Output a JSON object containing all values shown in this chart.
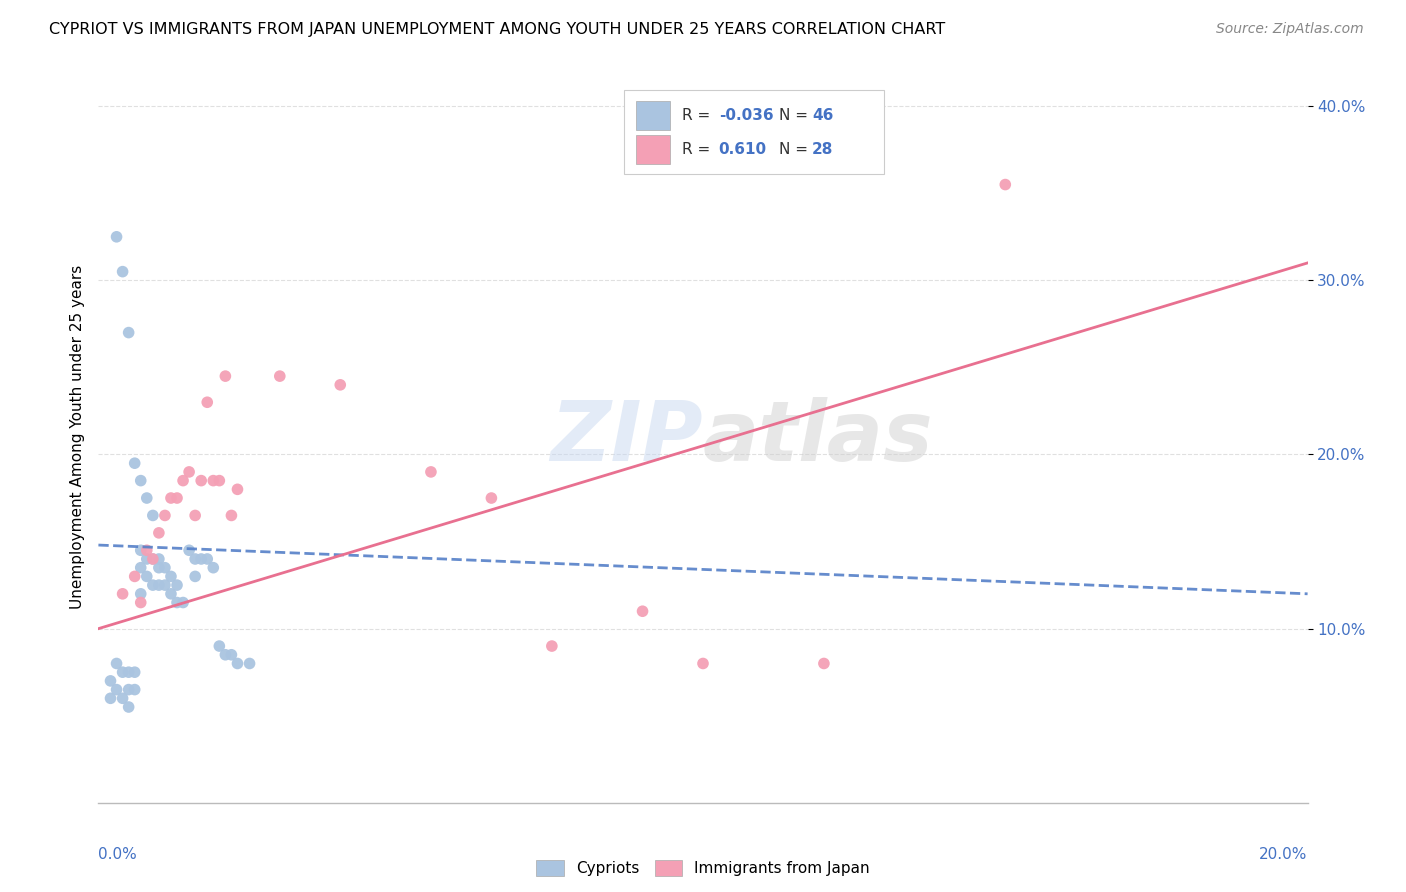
{
  "title": "CYPRIOT VS IMMIGRANTS FROM JAPAN UNEMPLOYMENT AMONG YOUTH UNDER 25 YEARS CORRELATION CHART",
  "source": "Source: ZipAtlas.com",
  "ylabel": "Unemployment Among Youth under 25 years",
  "xlim": [
    0.0,
    0.2
  ],
  "ylim": [
    0.0,
    0.42
  ],
  "legend_r_cypriot": "-0.036",
  "legend_n_cypriot": "46",
  "legend_r_japan": "0.610",
  "legend_n_japan": "28",
  "watermark": "ZIPatlas",
  "cypriot_color": "#aac4e0",
  "japan_color": "#f4a0b5",
  "cypriot_line_color": "#5580c8",
  "japan_line_color": "#e87090",
  "background_color": "#ffffff",
  "grid_color": "#e0e0e0",
  "cypriot_x": [
    0.002,
    0.002,
    0.003,
    0.003,
    0.003,
    0.004,
    0.004,
    0.004,
    0.005,
    0.005,
    0.005,
    0.005,
    0.006,
    0.006,
    0.006,
    0.007,
    0.007,
    0.007,
    0.007,
    0.008,
    0.008,
    0.008,
    0.009,
    0.009,
    0.009,
    0.01,
    0.01,
    0.01,
    0.011,
    0.011,
    0.012,
    0.012,
    0.013,
    0.013,
    0.014,
    0.015,
    0.016,
    0.016,
    0.017,
    0.018,
    0.019,
    0.02,
    0.021,
    0.022,
    0.023,
    0.025
  ],
  "cypriot_y": [
    0.07,
    0.06,
    0.325,
    0.08,
    0.065,
    0.305,
    0.075,
    0.06,
    0.27,
    0.075,
    0.065,
    0.055,
    0.195,
    0.075,
    0.065,
    0.185,
    0.145,
    0.135,
    0.12,
    0.175,
    0.14,
    0.13,
    0.165,
    0.14,
    0.125,
    0.14,
    0.135,
    0.125,
    0.135,
    0.125,
    0.13,
    0.12,
    0.125,
    0.115,
    0.115,
    0.145,
    0.14,
    0.13,
    0.14,
    0.14,
    0.135,
    0.09,
    0.085,
    0.085,
    0.08,
    0.08
  ],
  "japan_x": [
    0.004,
    0.006,
    0.007,
    0.008,
    0.009,
    0.01,
    0.011,
    0.012,
    0.013,
    0.014,
    0.015,
    0.016,
    0.017,
    0.018,
    0.019,
    0.02,
    0.021,
    0.022,
    0.023,
    0.03,
    0.04,
    0.055,
    0.065,
    0.075,
    0.09,
    0.1,
    0.12,
    0.15
  ],
  "japan_y": [
    0.12,
    0.13,
    0.115,
    0.145,
    0.14,
    0.155,
    0.165,
    0.175,
    0.175,
    0.185,
    0.19,
    0.165,
    0.185,
    0.23,
    0.185,
    0.185,
    0.245,
    0.165,
    0.18,
    0.245,
    0.24,
    0.19,
    0.175,
    0.09,
    0.11,
    0.08,
    0.08,
    0.355
  ]
}
